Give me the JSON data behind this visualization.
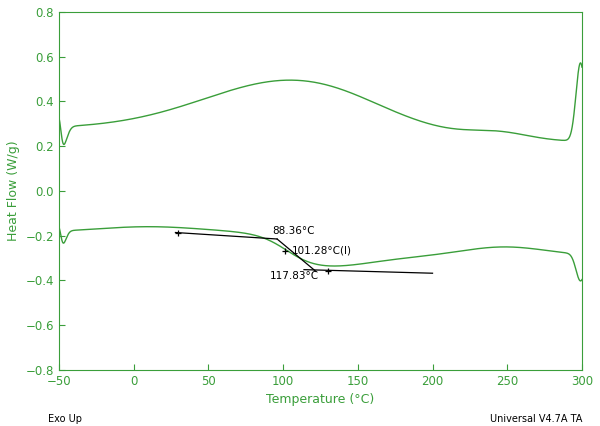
{
  "xlim": [
    -50,
    300
  ],
  "ylim": [
    -0.8,
    0.8
  ],
  "xlabel": "Temperature (°C)",
  "ylabel": "Heat Flow (W/g)",
  "bottom_left_label": "Exo Up",
  "bottom_right_label": "Universal V4.7A TA",
  "green_color": "#3a9e3a",
  "black_color": "#000000",
  "annotation1": "88.36°C",
  "annotation2": "101.28°C(I)",
  "annotation3": "117.83°C",
  "background_color": "#ffffff",
  "tick_color": "#3a9e3a",
  "spine_color": "#3a9e3a"
}
